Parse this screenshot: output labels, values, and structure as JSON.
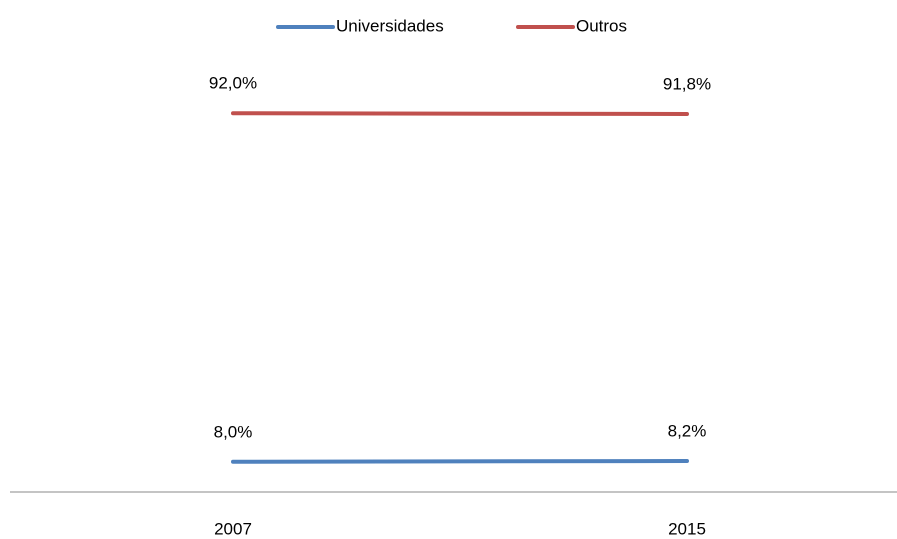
{
  "chart_data": {
    "type": "line",
    "categories": [
      "2007",
      "2015"
    ],
    "series": [
      {
        "name": "Universidades",
        "color": "#4f81bd",
        "values": [
          8.0,
          8.2
        ],
        "value_labels": [
          "8,0%",
          "8,2%"
        ]
      },
      {
        "name": "Outros",
        "color": "#c0504d",
        "values": [
          92.0,
          91.8
        ],
        "value_labels": [
          "92,0%",
          "91,8%"
        ]
      }
    ],
    "ylim": [
      0,
      100
    ],
    "legend": "top"
  }
}
